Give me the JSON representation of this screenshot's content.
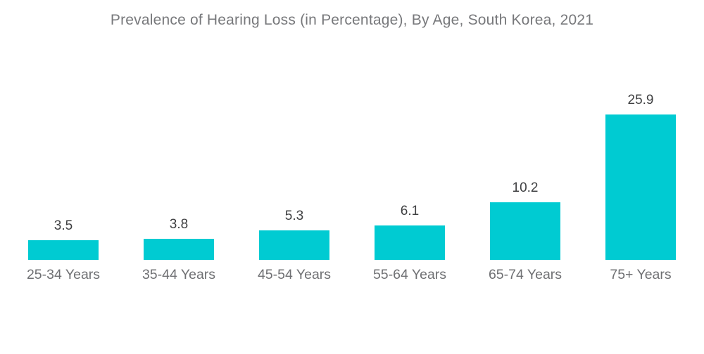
{
  "title": "Prevalence of Hearing Loss (in Percentage), By Age, South Korea, 2021",
  "colors": {
    "bar": "#00cbd2",
    "title_text": "#77787b",
    "value_label_text": "#3f4042",
    "category_label_text": "#6f7073",
    "background": "#ffffff"
  },
  "chart_data": {
    "type": "bar",
    "title": "Prevalence of Hearing Loss (in Percentage), By Age, South Korea, 2021",
    "categories": [
      "25-34 Years",
      "35-44 Years",
      "45-54 Years",
      "55-64 Years",
      "65-74 Years",
      "75+ Years"
    ],
    "values": [
      3.5,
      3.8,
      5.3,
      6.1,
      10.2,
      25.9
    ],
    "xlabel": "",
    "ylabel": "",
    "ylim": [
      0,
      28
    ],
    "grid": false,
    "legend": false,
    "data_labels": true,
    "axes_visible": false
  }
}
